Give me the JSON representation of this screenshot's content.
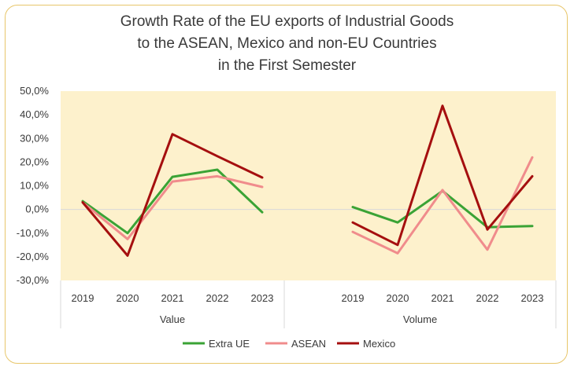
{
  "chart_data": {
    "type": "line",
    "title": [
      "Growth Rate of the EU exports of Industrial Goods",
      "to the ASEAN, Mexico and non-EU Countries",
      "in the First Semester"
    ],
    "y_ticks": [
      "50,0%",
      "40,0%",
      "30,0%",
      "20,0%",
      "10,0%",
      "0,0%",
      "-10,0%",
      "-20,0%",
      "-30,0%"
    ],
    "ylim": [
      -30,
      50
    ],
    "groups": [
      {
        "label": "Value",
        "categories": [
          "2019",
          "2020",
          "2021",
          "2022",
          "2023"
        ],
        "series": [
          {
            "name": "Extra UE",
            "values": [
              3.5,
              -10.0,
              13.8,
              16.8,
              -1.2
            ]
          },
          {
            "name": "ASEAN",
            "values": [
              3.0,
              -12.5,
              11.8,
              14.0,
              9.5
            ]
          },
          {
            "name": "Mexico",
            "values": [
              3.0,
              -19.5,
              31.8,
              22.5,
              13.5
            ]
          }
        ]
      },
      {
        "label": "Volume",
        "categories": [
          "2019",
          "2020",
          "2021",
          "2022",
          "2023"
        ],
        "series": [
          {
            "name": "Extra UE",
            "values": [
              1.0,
              -5.5,
              7.8,
              -7.5,
              -7.0
            ]
          },
          {
            "name": "ASEAN",
            "values": [
              -9.5,
              -18.5,
              8.2,
              -17.0,
              22.0
            ]
          },
          {
            "name": "Mexico",
            "values": [
              -5.5,
              -15.0,
              43.8,
              -8.5,
              14.0
            ]
          }
        ]
      }
    ],
    "legend": [
      {
        "name": "Extra UE",
        "color": "#3aa335"
      },
      {
        "name": "ASEAN",
        "color": "#f08c8c"
      },
      {
        "name": "Mexico",
        "color": "#a50f0f"
      }
    ],
    "legend_position": "bottom",
    "plot_background": "#fdf1cc",
    "grid": false
  }
}
